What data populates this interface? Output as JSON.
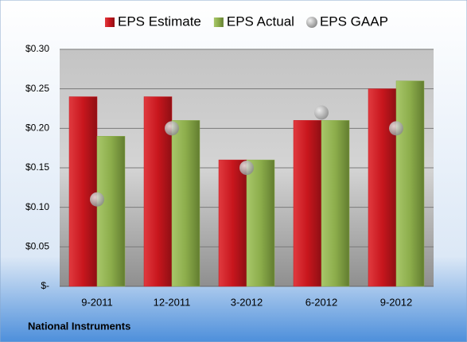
{
  "chart_data": {
    "type": "bar",
    "categories": [
      "9-2011",
      "12-2011",
      "3-2012",
      "6-2012",
      "9-2012"
    ],
    "series": [
      {
        "name": "EPS Estimate",
        "color": "#c8161d",
        "values": [
          0.24,
          0.24,
          0.16,
          0.21,
          0.25
        ]
      },
      {
        "name": "EPS Actual",
        "color": "#8cad4b",
        "values": [
          0.19,
          0.21,
          0.16,
          0.21,
          0.26
        ]
      },
      {
        "name": "EPS GAAP",
        "color": "#a9a9a9",
        "type": "scatter",
        "values": [
          0.11,
          0.2,
          0.15,
          0.22,
          0.2
        ]
      }
    ],
    "ylim": [
      0,
      0.3
    ],
    "yticks": [
      {
        "value": 0,
        "label": "$-"
      },
      {
        "value": 0.05,
        "label": "$0.05"
      },
      {
        "value": 0.1,
        "label": "$0.10"
      },
      {
        "value": 0.15,
        "label": "$0.15"
      },
      {
        "value": 0.2,
        "label": "$0.20"
      },
      {
        "value": 0.25,
        "label": "$0.25"
      },
      {
        "value": 0.3,
        "label": "$0.30"
      }
    ],
    "grid": true,
    "legend": "top",
    "footer": "National Instruments"
  }
}
